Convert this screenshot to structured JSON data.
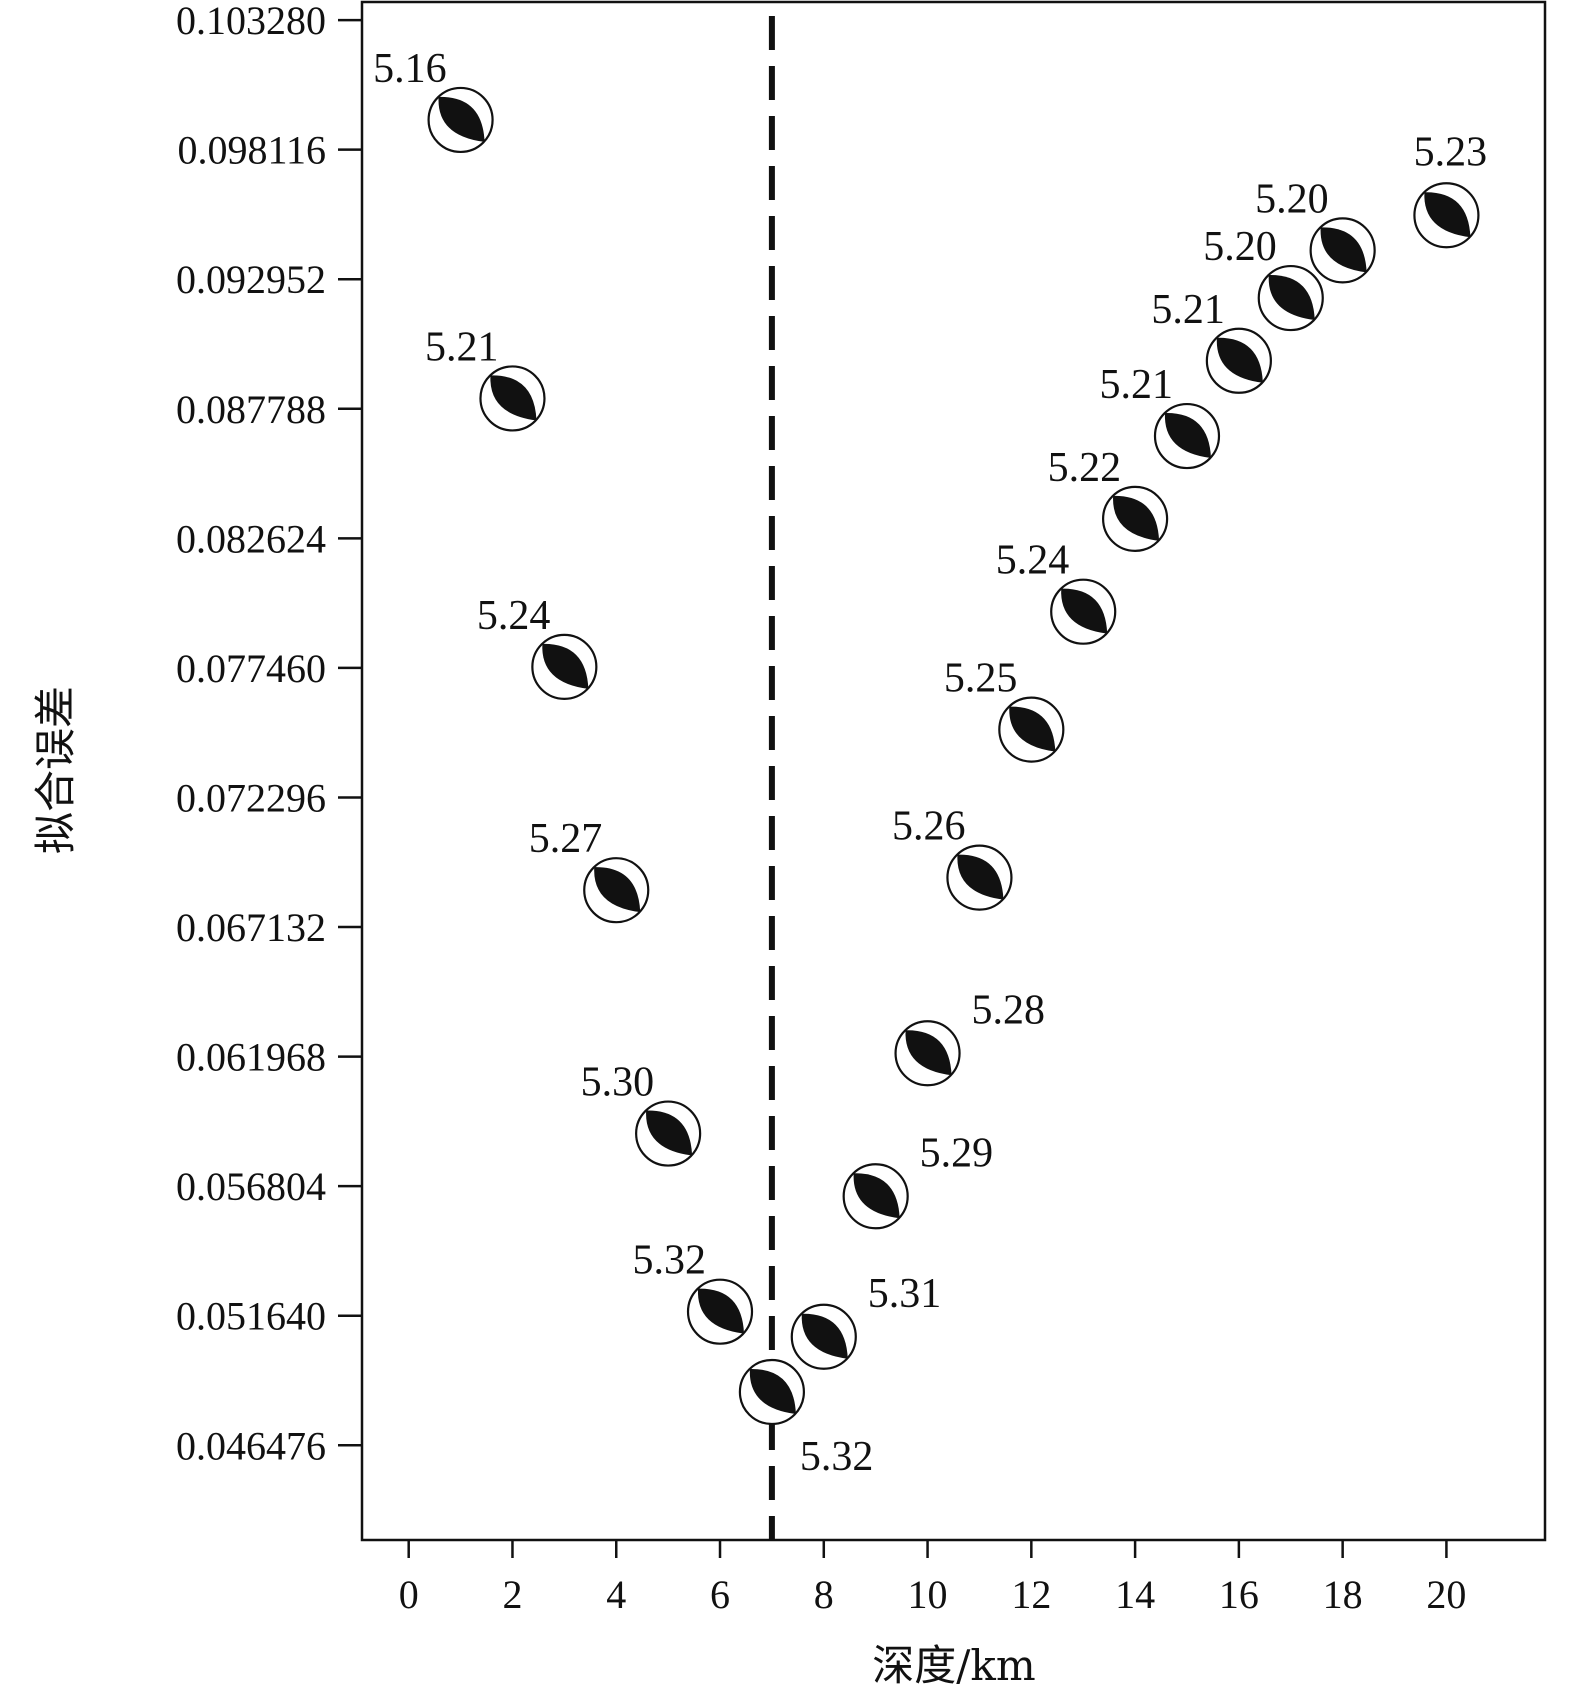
{
  "chart_data": {
    "type": "scatter",
    "marker": "focal-mechanism-beachball",
    "xlabel": "深度/km",
    "ylabel": "拟合误差",
    "xlim": [
      -0.9,
      21.9
    ],
    "ylim": [
      0.0427,
      0.104
    ],
    "x_ticks": [
      "0",
      "2",
      "4",
      "6",
      "8",
      "10",
      "12",
      "14",
      "16",
      "18",
      "20"
    ],
    "y_ticks": [
      "0.103280",
      "0.098116",
      "0.092952",
      "0.087788",
      "0.082624",
      "0.077460",
      "0.072296",
      "0.067132",
      "0.061968",
      "0.056804",
      "0.051640",
      "0.046476"
    ],
    "best_depth": 7,
    "points": [
      {
        "x": 1,
        "y": 0.0993,
        "label": "5.16"
      },
      {
        "x": 2,
        "y": 0.0882,
        "label": "5.21"
      },
      {
        "x": 3,
        "y": 0.0775,
        "label": "5.24"
      },
      {
        "x": 4,
        "y": 0.0686,
        "label": "5.27"
      },
      {
        "x": 5,
        "y": 0.0589,
        "label": "5.30"
      },
      {
        "x": 6,
        "y": 0.0518,
        "label": "5.32"
      },
      {
        "x": 7,
        "y": 0.0486,
        "label": "5.32"
      },
      {
        "x": 8,
        "y": 0.0508,
        "label": "5.31"
      },
      {
        "x": 9,
        "y": 0.0564,
        "label": "5.29"
      },
      {
        "x": 10,
        "y": 0.0621,
        "label": "5.28"
      },
      {
        "x": 11,
        "y": 0.0691,
        "label": "5.26"
      },
      {
        "x": 12,
        "y": 0.075,
        "label": "5.25"
      },
      {
        "x": 13,
        "y": 0.0797,
        "label": "5.24"
      },
      {
        "x": 14,
        "y": 0.0834,
        "label": "5.22"
      },
      {
        "x": 15,
        "y": 0.0867,
        "label": "5.21"
      },
      {
        "x": 16,
        "y": 0.0897,
        "label": "5.21"
      },
      {
        "x": 17,
        "y": 0.0922,
        "label": "5.20"
      },
      {
        "x": 18,
        "y": 0.0941,
        "label": "5.20"
      },
      {
        "x": 20,
        "y": 0.0955,
        "label": "5.23"
      }
    ]
  }
}
